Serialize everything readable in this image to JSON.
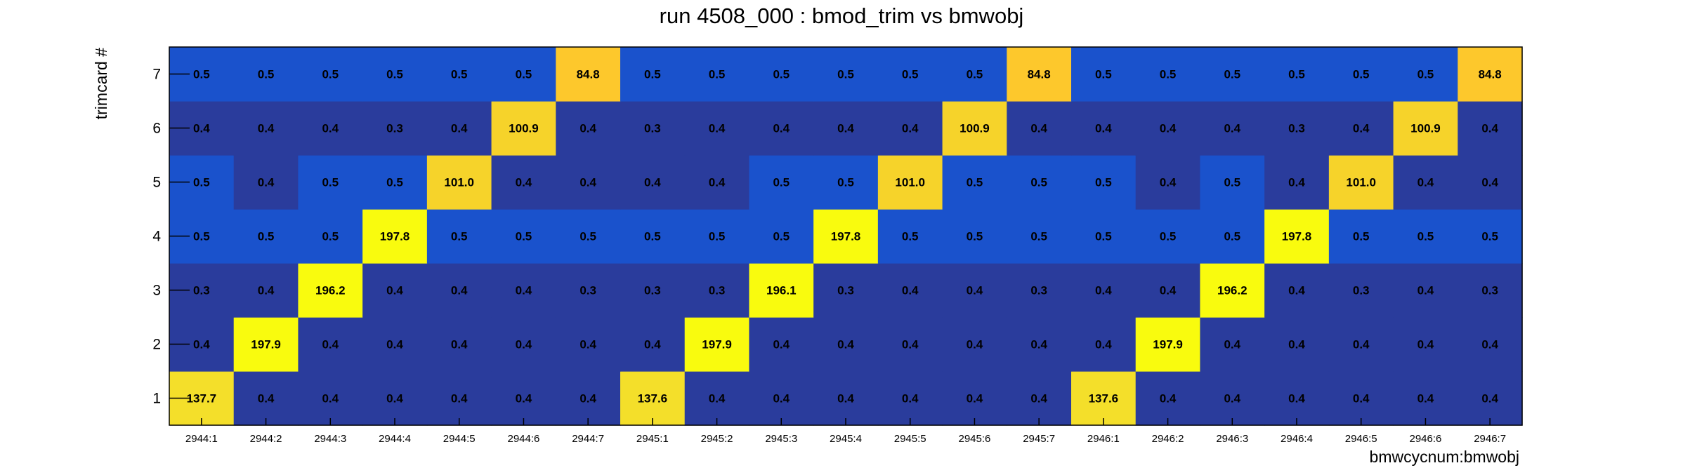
{
  "chart_data": {
    "type": "heatmap",
    "title": "run 4508_000 : bmod_trim vs bmwobj",
    "xlabel": "bmwcycnum:bmwobj",
    "ylabel": "trimcard #",
    "x_categories": [
      "2944:1",
      "2944:2",
      "2944:3",
      "2944:4",
      "2944:5",
      "2944:6",
      "2944:7",
      "2945:1",
      "2945:2",
      "2945:3",
      "2945:4",
      "2945:5",
      "2945:6",
      "2945:7",
      "2946:1",
      "2946:2",
      "2946:3",
      "2946:4",
      "2946:5",
      "2946:6",
      "2946:7"
    ],
    "y_categories": [
      "1",
      "2",
      "3",
      "4",
      "5",
      "6",
      "7"
    ],
    "values": [
      [
        137.7,
        0.4,
        0.4,
        0.4,
        0.4,
        0.4,
        0.4,
        137.6,
        0.4,
        0.4,
        0.4,
        0.4,
        0.4,
        0.4,
        137.6,
        0.4,
        0.4,
        0.4,
        0.4,
        0.4,
        0.4
      ],
      [
        0.4,
        197.9,
        0.4,
        0.4,
        0.4,
        0.4,
        0.4,
        0.4,
        197.9,
        0.4,
        0.4,
        0.4,
        0.4,
        0.4,
        0.4,
        197.9,
        0.4,
        0.4,
        0.4,
        0.4,
        0.4
      ],
      [
        0.3,
        0.4,
        196.2,
        0.4,
        0.4,
        0.4,
        0.3,
        0.3,
        0.3,
        196.1,
        0.3,
        0.4,
        0.4,
        0.3,
        0.4,
        0.4,
        196.2,
        0.4,
        0.3,
        0.4,
        0.3
      ],
      [
        0.5,
        0.5,
        0.5,
        197.8,
        0.5,
        0.5,
        0.5,
        0.5,
        0.5,
        0.5,
        197.8,
        0.5,
        0.5,
        0.5,
        0.5,
        0.5,
        0.5,
        197.8,
        0.5,
        0.5,
        0.5
      ],
      [
        0.5,
        0.4,
        0.5,
        0.5,
        101.0,
        0.4,
        0.4,
        0.4,
        0.4,
        0.5,
        0.5,
        101.0,
        0.5,
        0.5,
        0.5,
        0.4,
        0.5,
        0.4,
        101.0,
        0.4,
        0.4
      ],
      [
        0.4,
        0.4,
        0.4,
        0.3,
        0.4,
        100.9,
        0.4,
        0.3,
        0.4,
        0.4,
        0.4,
        0.4,
        100.9,
        0.4,
        0.4,
        0.4,
        0.4,
        0.3,
        0.4,
        100.9,
        0.4
      ],
      [
        0.5,
        0.5,
        0.5,
        0.5,
        0.5,
        0.5,
        84.8,
        0.5,
        0.5,
        0.5,
        0.5,
        0.5,
        0.5,
        84.8,
        0.5,
        0.5,
        0.5,
        0.5,
        0.5,
        0.5,
        84.8
      ]
    ],
    "color_scale": {
      "0.3": "#2a3c9c",
      "0.4": "#2a3c9c",
      "0.5": "#1a52cc",
      "84.8": "#fdc82c",
      "100.9": "#f6d32a",
      "101.0": "#f6d32a",
      "137.6": "#f4df2a",
      "137.7": "#f4df2a",
      "high": "#f9fb0e"
    },
    "grid": false,
    "legend": "none"
  }
}
